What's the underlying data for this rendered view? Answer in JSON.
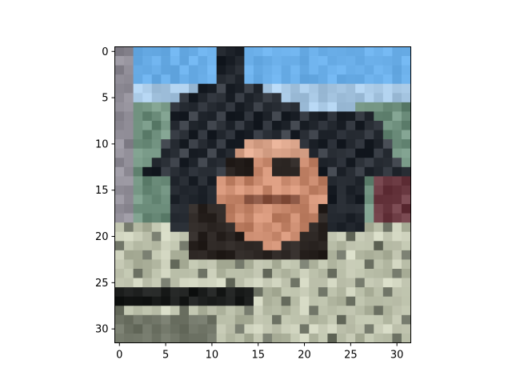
{
  "chart_data": {
    "type": "heatmap",
    "title": "",
    "xlabel": "",
    "ylabel": "",
    "xlim": [
      -0.5,
      31.5
    ],
    "ylim": [
      31.5,
      -0.5
    ],
    "grid": false,
    "image_size": [
      32,
      32
    ],
    "xticks": [
      0,
      5,
      10,
      15,
      20,
      25,
      30
    ],
    "yticks": [
      0,
      5,
      10,
      15,
      20,
      25,
      30
    ],
    "xtick_labels": [
      "0",
      "5",
      "10",
      "15",
      "20",
      "25",
      "30"
    ],
    "ytick_labels": [
      "0",
      "5",
      "10",
      "15",
      "20",
      "25",
      "30"
    ],
    "content_description": "pixelated 32x32 photo: person wearing a dark wide-brim hat and light poncho against blue sky",
    "palette": {
      "sky": "#6aaee8",
      "sky_light": "#a8c8e4",
      "hat": "#1e232a",
      "hat_mid": "#3a3f47",
      "face": "#c98a6e",
      "face_light": "#dba58b",
      "face_dark": "#8a5542",
      "beard": "#2b2522",
      "poncho": "#b4b9a3",
      "poncho_light": "#c9cdb8",
      "poncho_dark": "#6f7466",
      "stripe": "#1b1d1c",
      "greenery": "#6e8f7d",
      "bg_left": "#8f8c96",
      "bg_right": "#6b3a42"
    }
  }
}
